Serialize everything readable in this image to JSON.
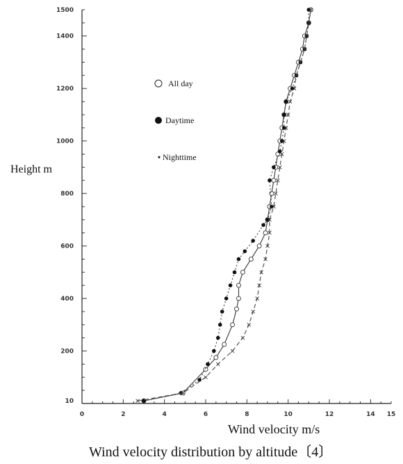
{
  "chart_data": {
    "type": "line",
    "title": "",
    "caption": "Wind velocity distribution by altitude〔4〕",
    "xlabel": "Wind velocity m/s",
    "ylabel": "Height m",
    "xlim": [
      0,
      15
    ],
    "ylim": [
      0,
      1500
    ],
    "x_ticks": [
      "0",
      "2",
      "4",
      "6",
      "8",
      "10",
      "12",
      "14",
      "15"
    ],
    "y_ticks": [
      "10",
      "200",
      "400",
      "600",
      "800",
      "1000",
      "1200",
      "1400",
      "1500"
    ],
    "legend_position": "upper-left",
    "series": [
      {
        "name": "All day",
        "marker": "open-circle",
        "line": "solid",
        "points": [
          [
            3.0,
            10
          ],
          [
            4.9,
            40
          ],
          [
            6.0,
            130
          ],
          [
            6.5,
            175
          ],
          [
            6.9,
            225
          ],
          [
            7.3,
            300
          ],
          [
            7.5,
            360
          ],
          [
            7.6,
            400
          ],
          [
            7.6,
            450
          ],
          [
            7.8,
            500
          ],
          [
            8.2,
            550
          ],
          [
            8.6,
            600
          ],
          [
            8.9,
            650
          ],
          [
            9.0,
            700
          ],
          [
            9.1,
            750
          ],
          [
            9.2,
            800
          ],
          [
            9.3,
            850
          ],
          [
            9.4,
            900
          ],
          [
            9.5,
            950
          ],
          [
            9.6,
            1000
          ],
          [
            9.7,
            1050
          ],
          [
            9.8,
            1100
          ],
          [
            9.9,
            1150
          ],
          [
            10.1,
            1200
          ],
          [
            10.3,
            1250
          ],
          [
            10.5,
            1300
          ],
          [
            10.7,
            1350
          ],
          [
            10.8,
            1400
          ],
          [
            11.0,
            1450
          ],
          [
            11.1,
            1500
          ]
        ]
      },
      {
        "name": "Daytime",
        "marker": "filled-circle",
        "line": "dotted",
        "points": [
          [
            3.0,
            10
          ],
          [
            4.8,
            40
          ],
          [
            5.7,
            90
          ],
          [
            6.1,
            150
          ],
          [
            6.4,
            200
          ],
          [
            6.6,
            250
          ],
          [
            6.7,
            300
          ],
          [
            6.8,
            350
          ],
          [
            7.0,
            400
          ],
          [
            7.2,
            450
          ],
          [
            7.4,
            500
          ],
          [
            7.6,
            550
          ],
          [
            7.9,
            580
          ],
          [
            8.3,
            620
          ],
          [
            8.8,
            680
          ],
          [
            9.0,
            700
          ],
          [
            9.2,
            750
          ],
          [
            9.1,
            850
          ],
          [
            9.3,
            900
          ],
          [
            9.6,
            960
          ],
          [
            9.7,
            1000
          ],
          [
            9.8,
            1050
          ],
          [
            9.8,
            1100
          ],
          [
            9.9,
            1150
          ],
          [
            10.2,
            1200
          ],
          [
            10.4,
            1250
          ],
          [
            10.6,
            1300
          ],
          [
            10.8,
            1350
          ],
          [
            10.9,
            1400
          ],
          [
            11.0,
            1450
          ],
          [
            11.0,
            1500
          ]
        ]
      },
      {
        "name": "Nighttime",
        "marker": "dot",
        "line": "dashed",
        "points": [
          [
            2.7,
            10
          ],
          [
            4.9,
            40
          ],
          [
            6.0,
            100
          ],
          [
            6.6,
            150
          ],
          [
            7.3,
            200
          ],
          [
            7.8,
            250
          ],
          [
            8.1,
            300
          ],
          [
            8.3,
            350
          ],
          [
            8.5,
            400
          ],
          [
            8.6,
            450
          ],
          [
            8.7,
            500
          ],
          [
            8.9,
            550
          ],
          [
            9.0,
            600
          ],
          [
            9.1,
            650
          ],
          [
            9.1,
            700
          ],
          [
            9.3,
            750
          ],
          [
            9.4,
            800
          ],
          [
            9.5,
            850
          ],
          [
            9.6,
            900
          ],
          [
            9.7,
            950
          ],
          [
            9.8,
            1000
          ],
          [
            9.9,
            1050
          ],
          [
            10.0,
            1100
          ],
          [
            10.1,
            1150
          ],
          [
            10.3,
            1200
          ],
          [
            10.4,
            1250
          ],
          [
            10.6,
            1300
          ],
          [
            10.8,
            1350
          ],
          [
            10.9,
            1400
          ],
          [
            11.0,
            1450
          ],
          [
            11.1,
            1500
          ]
        ]
      }
    ]
  }
}
